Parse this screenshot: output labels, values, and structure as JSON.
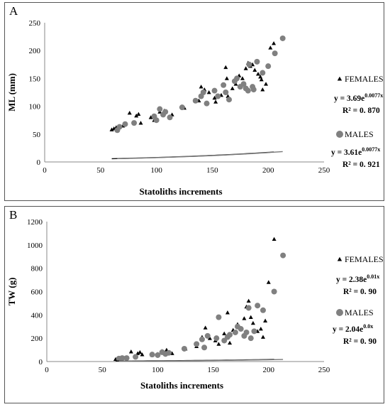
{
  "chart_data": [
    {
      "type": "scatter",
      "panel_label": "A",
      "xlabel": "Statoliths increments",
      "ylabel": "ML (mm)",
      "xlim": [
        0,
        250
      ],
      "ylim": [
        0,
        250
      ],
      "x_ticks": [
        "0",
        "50",
        "100",
        "150",
        "200",
        "250"
      ],
      "y_ticks": [
        "0",
        "50",
        "100",
        "150",
        "200",
        "250"
      ],
      "grid": false,
      "legend_position": "right",
      "series": [
        {
          "name": "FEMALES",
          "marker": "triangle",
          "color": "#000000",
          "equation_base": "y = 3.69e",
          "equation_exp": "0.0077x",
          "r2": "R² = 0. 870",
          "trend": {
            "a": 3.69,
            "b": 0.0077
          },
          "points": [
            [
              60,
              58
            ],
            [
              62,
              60
            ],
            [
              64,
              62
            ],
            [
              70,
              65
            ],
            [
              76,
              88
            ],
            [
              82,
              83
            ],
            [
              84,
              86
            ],
            [
              86,
              70
            ],
            [
              95,
              80
            ],
            [
              98,
              75
            ],
            [
              103,
              90
            ],
            [
              107,
              92
            ],
            [
              114,
              85
            ],
            [
              125,
              97
            ],
            [
              138,
              110
            ],
            [
              140,
              135
            ],
            [
              143,
              130
            ],
            [
              147,
              125
            ],
            [
              152,
              115
            ],
            [
              153,
              108
            ],
            [
              158,
              120
            ],
            [
              162,
              170
            ],
            [
              163,
              150
            ],
            [
              164,
              118
            ],
            [
              168,
              132
            ],
            [
              171,
              140
            ],
            [
              174,
              155
            ],
            [
              177,
              150
            ],
            [
              180,
              168
            ],
            [
              182,
              178
            ],
            [
              184,
              172
            ],
            [
              186,
              175
            ],
            [
              188,
              165
            ],
            [
              191,
              158
            ],
            [
              193,
              153
            ],
            [
              194,
              148
            ],
            [
              195,
              130
            ],
            [
              198,
              140
            ],
            [
              202,
              205
            ],
            [
              205,
              213
            ]
          ]
        },
        {
          "name": "MALES",
          "marker": "circle",
          "color": "#808080",
          "equation_base": "y = 3.61e",
          "equation_exp": "0.0077x",
          "r2": "R² = 0. 921",
          "trend": {
            "a": 3.61,
            "b": 0.0077
          },
          "points": [
            [
              65,
              57
            ],
            [
              67,
              63
            ],
            [
              72,
              68
            ],
            [
              80,
              70
            ],
            [
              98,
              82
            ],
            [
              100,
              75
            ],
            [
              103,
              95
            ],
            [
              106,
              85
            ],
            [
              108,
              90
            ],
            [
              112,
              80
            ],
            [
              123,
              98
            ],
            [
              135,
              110
            ],
            [
              140,
              118
            ],
            [
              142,
              125
            ],
            [
              145,
              105
            ],
            [
              152,
              128
            ],
            [
              155,
              118
            ],
            [
              160,
              138
            ],
            [
              162,
              125
            ],
            [
              165,
              112
            ],
            [
              170,
              145
            ],
            [
              172,
              150
            ],
            [
              175,
              135
            ],
            [
              178,
              140
            ],
            [
              180,
              132
            ],
            [
              182,
              128
            ],
            [
              183,
              175
            ],
            [
              186,
              135
            ],
            [
              187,
              130
            ],
            [
              190,
              180
            ],
            [
              195,
              160
            ],
            [
              200,
              172
            ],
            [
              206,
              195
            ],
            [
              213,
              222
            ]
          ]
        }
      ]
    },
    {
      "type": "scatter",
      "panel_label": "B",
      "xlabel": "Statoliths increments",
      "ylabel": "TW (g)",
      "xlim": [
        0,
        250
      ],
      "ylim": [
        0,
        1200
      ],
      "x_ticks": [
        "0",
        "50",
        "100",
        "150",
        "200",
        "250"
      ],
      "y_ticks": [
        "0",
        "200",
        "400",
        "600",
        "800",
        "1000",
        "1200"
      ],
      "grid": false,
      "legend_position": "right",
      "series": [
        {
          "name": "FEMALES",
          "marker": "triangle",
          "color": "#000000",
          "equation_base": "y = 2.38e",
          "equation_exp": "0.01x",
          "r2": "R² = 0. 90",
          "trend": {
            "a": 2.38,
            "b": 0.01
          },
          "points": [
            [
              62,
              20
            ],
            [
              65,
              25
            ],
            [
              70,
              30
            ],
            [
              76,
              85
            ],
            [
              82,
              70
            ],
            [
              84,
              80
            ],
            [
              86,
              60
            ],
            [
              95,
              55
            ],
            [
              100,
              65
            ],
            [
              104,
              90
            ],
            [
              108,
              100
            ],
            [
              113,
              70
            ],
            [
              125,
              110
            ],
            [
              135,
              130
            ],
            [
              140,
              210
            ],
            [
              143,
              290
            ],
            [
              147,
              200
            ],
            [
              152,
              180
            ],
            [
              155,
              150
            ],
            [
              160,
              240
            ],
            [
              163,
              420
            ],
            [
              165,
              160
            ],
            [
              168,
              270
            ],
            [
              172,
              320
            ],
            [
              175,
              280
            ],
            [
              178,
              370
            ],
            [
              180,
              470
            ],
            [
              182,
              520
            ],
            [
              184,
              380
            ],
            [
              186,
              330
            ],
            [
              190,
              260
            ],
            [
              193,
              280
            ],
            [
              195,
              210
            ],
            [
              197,
              350
            ],
            [
              200,
              680
            ],
            [
              205,
              1050
            ]
          ]
        },
        {
          "name": "MALES",
          "marker": "circle",
          "color": "#808080",
          "equation_base": "y = 2.04e",
          "equation_exp": "0.0x",
          "r2": "R² = 0. 90",
          "trend": {
            "a": 2.04,
            "b": 0.0102
          },
          "points": [
            [
              65,
              25
            ],
            [
              68,
              30
            ],
            [
              72,
              30
            ],
            [
              80,
              40
            ],
            [
              95,
              60
            ],
            [
              100,
              55
            ],
            [
              104,
              80
            ],
            [
              107,
              65
            ],
            [
              110,
              75
            ],
            [
              124,
              110
            ],
            [
              135,
              150
            ],
            [
              140,
              190
            ],
            [
              142,
              120
            ],
            [
              145,
              220
            ],
            [
              153,
              200
            ],
            [
              155,
              380
            ],
            [
              160,
              180
            ],
            [
              163,
              210
            ],
            [
              165,
              230
            ],
            [
              170,
              250
            ],
            [
              172,
              300
            ],
            [
              175,
              280
            ],
            [
              178,
              220
            ],
            [
              180,
              250
            ],
            [
              182,
              460
            ],
            [
              184,
              200
            ],
            [
              187,
              260
            ],
            [
              190,
              480
            ],
            [
              195,
              440
            ],
            [
              205,
              600
            ],
            [
              213,
              910
            ]
          ]
        }
      ]
    }
  ]
}
